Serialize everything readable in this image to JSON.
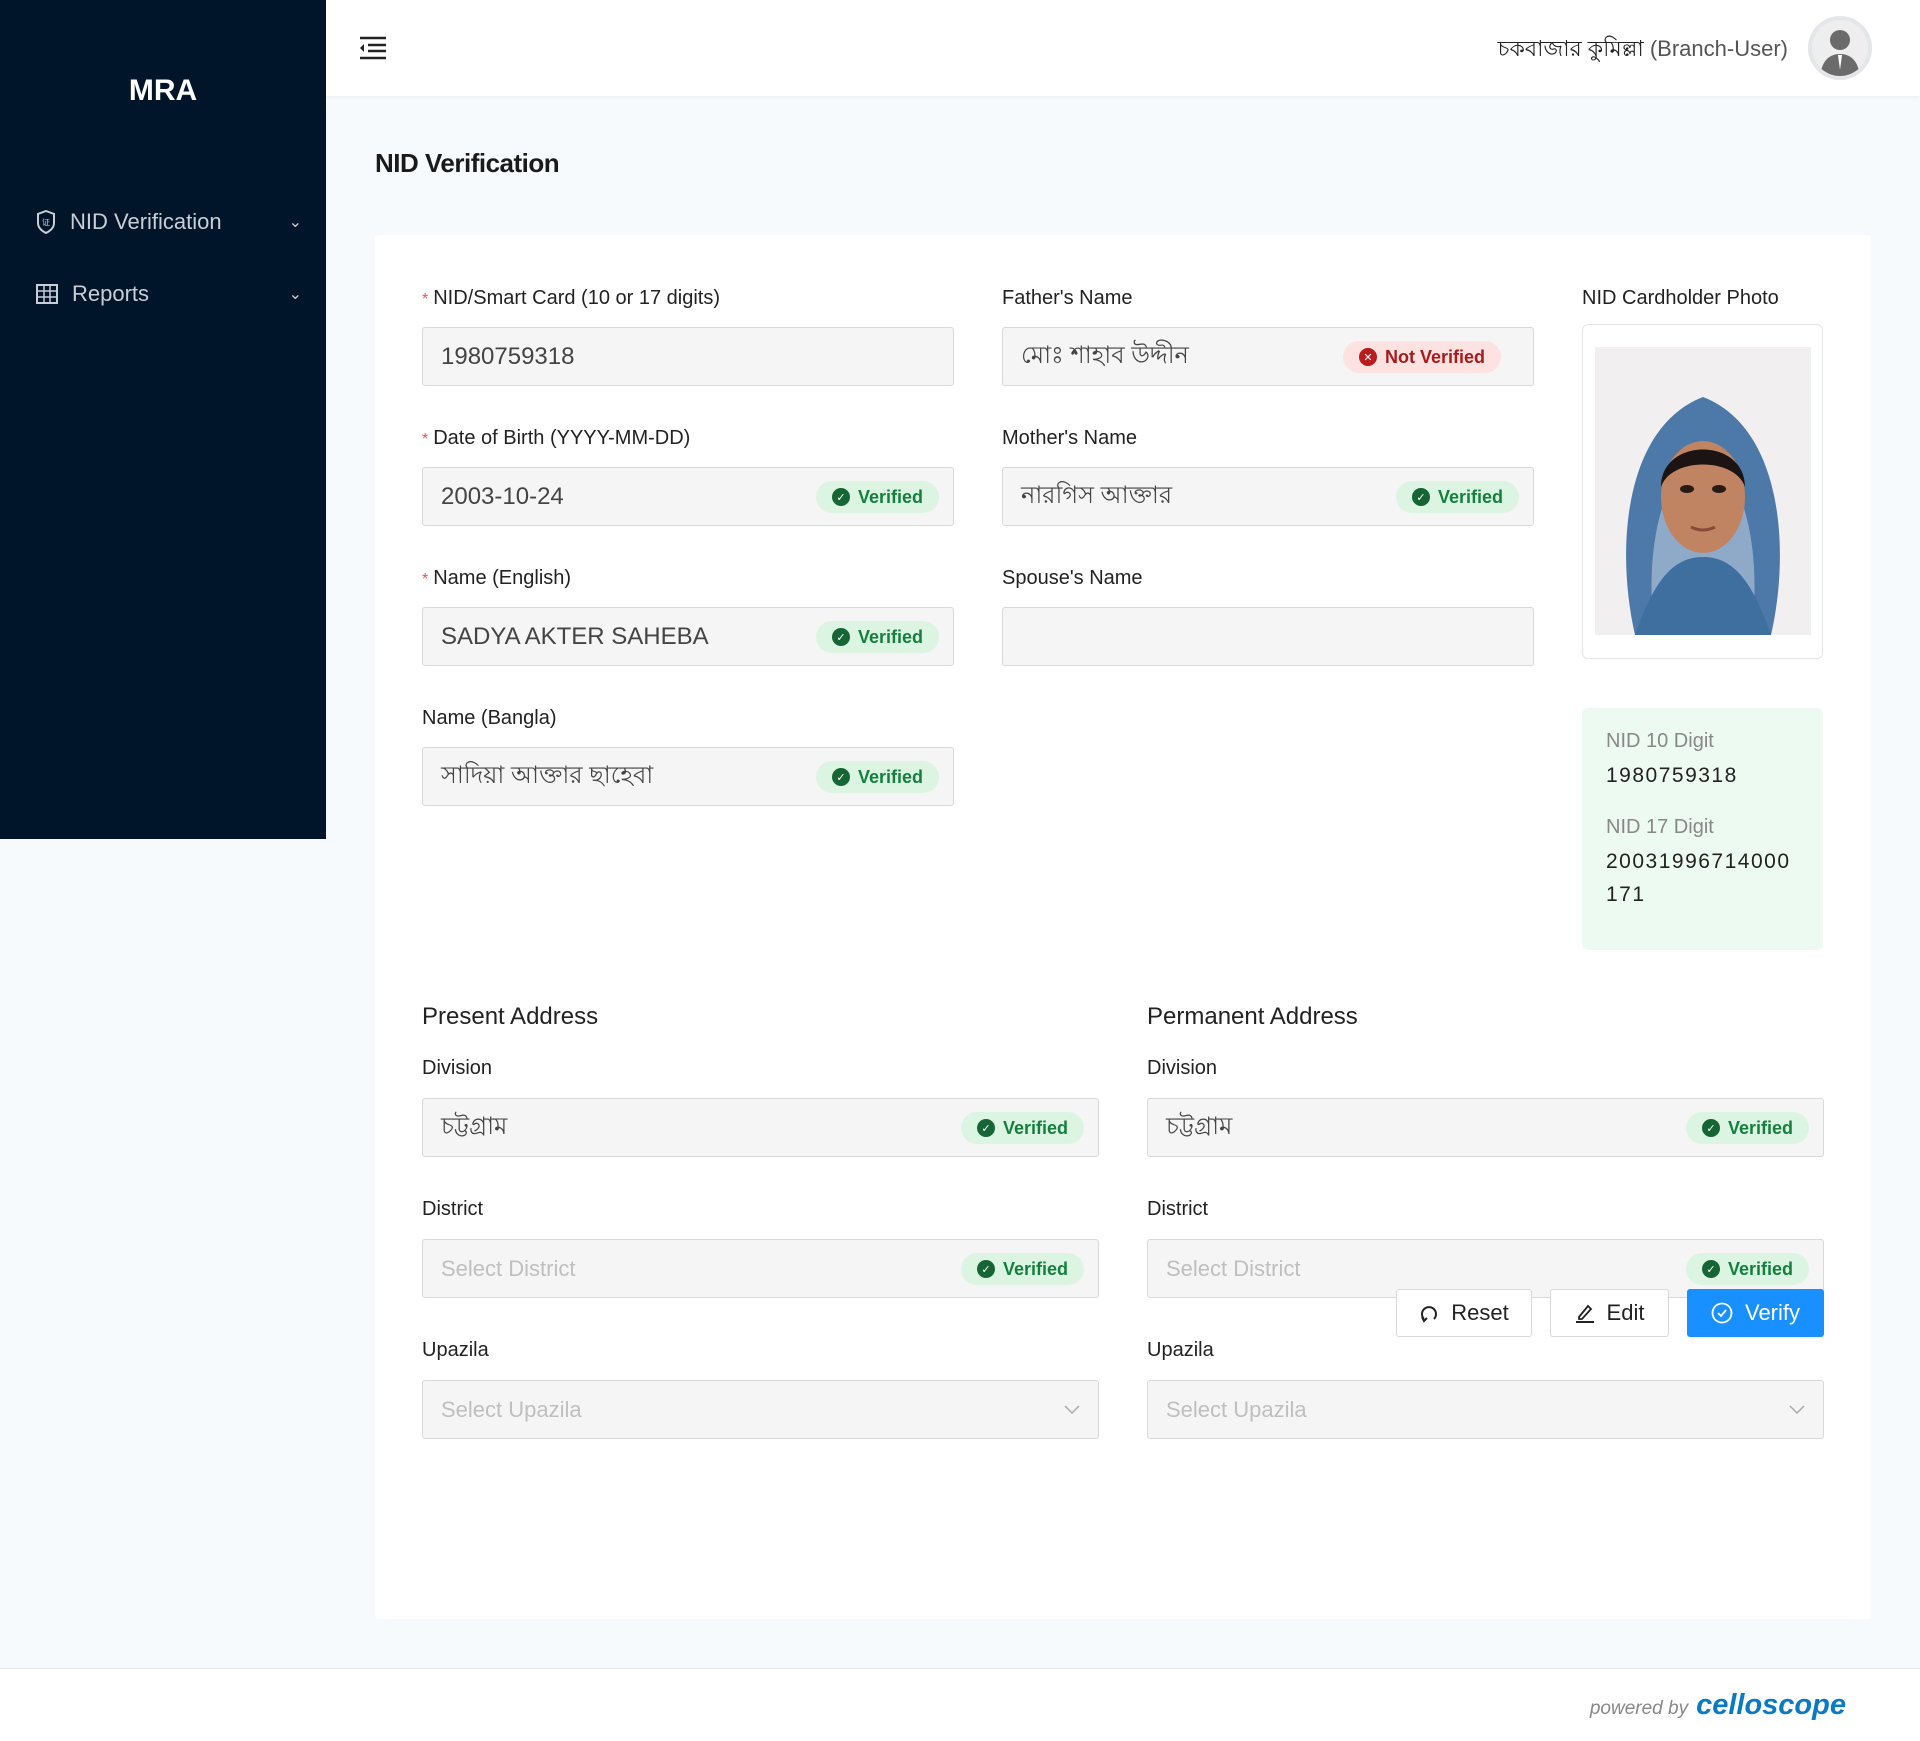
{
  "sidebar": {
    "logo": "MRA",
    "items": [
      {
        "label": "NID Verification",
        "icon": "shield-icon"
      },
      {
        "label": "Reports",
        "icon": "table-icon"
      }
    ]
  },
  "header": {
    "user_bn": "চকবাজার কুমিল্লা",
    "user_role": "(Branch-User)"
  },
  "page": {
    "title": "NID Verification"
  },
  "form": {
    "nid": {
      "label": "NID/Smart Card (10 or 17 digits)",
      "value": "1980759318"
    },
    "dob": {
      "label": "Date of Birth (YYYY-MM-DD)",
      "value": "2003-10-24",
      "status": "Verified"
    },
    "name_en": {
      "label": "Name (English)",
      "value": "SADYA AKTER SAHEBA",
      "status": "Verified"
    },
    "name_bn": {
      "label": "Name (Bangla)",
      "value": "সাদিয়া আক্তার ছাহেবা",
      "status": "Verified"
    },
    "father": {
      "label": "Father's Name",
      "value": "মোঃ শাহাব উদ্দীন",
      "status": "Not Verified"
    },
    "mother": {
      "label": "Mother's Name",
      "value": "নারগিস আক্তার",
      "status": "Verified"
    },
    "spouse": {
      "label": "Spouse's Name",
      "value": ""
    },
    "photo_label": "NID Cardholder Photo",
    "nid10_label": "NID 10 Digit",
    "nid10": "1980759318",
    "nid17_label": "NID 17 Digit",
    "nid17": "20031996714000171"
  },
  "present": {
    "title": "Present Address",
    "division_label": "Division",
    "division": "চট্টগ্রাম",
    "division_status": "Verified",
    "district_label": "District",
    "district_ph": "Select District",
    "district_status": "Verified",
    "upazila_label": "Upazila",
    "upazila_ph": "Select Upazila"
  },
  "permanent": {
    "title": "Permanent Address",
    "division_label": "Division",
    "division": "চট্টগ্রাম",
    "division_status": "Verified",
    "district_label": "District",
    "district_ph": "Select District",
    "district_status": "Verified",
    "upazila_label": "Upazila",
    "upazila_ph": "Select Upazila"
  },
  "buttons": {
    "reset": "Reset",
    "edit": "Edit",
    "verify": "Verify"
  },
  "footer": {
    "powered": "powered by",
    "brand": "celloscope"
  },
  "colors": {
    "sidebar": "#001529",
    "primary": "#1890ff",
    "verified": "#15803d",
    "not_verified": "#a61b1b"
  }
}
